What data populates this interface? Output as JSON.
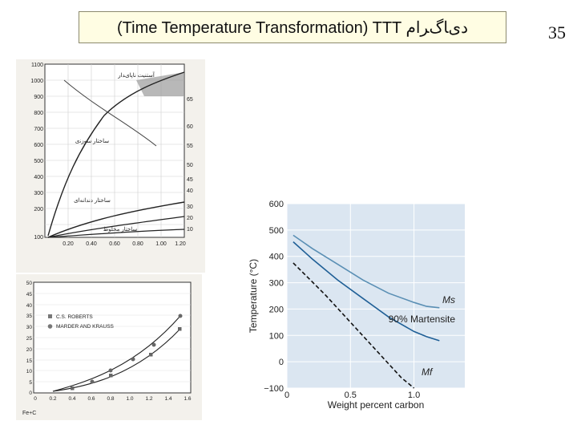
{
  "slide": {
    "title": "(Time Temperature Transformation) TTT دیﺎگﺮﺍﻡ",
    "page_number": "35"
  },
  "top_left_scan": {
    "y_ticks_left": [
      "1100",
      "1000",
      "900",
      "800",
      "700",
      "600",
      "500",
      "400",
      "300",
      "200",
      "100"
    ],
    "y_ticks_right": [
      "65",
      "60",
      "55",
      "50",
      "45",
      "40",
      "30",
      "20",
      "10"
    ],
    "x_ticks": [
      "0.20",
      "0.40",
      "0.60",
      "0.80",
      "1.00",
      "1.20"
    ],
    "labels": [
      "آﺳﺘﻨﯿﺖ ﻧﺎﭘﺎیﺪﺍﺭ",
      "ﺳﺎﺧﺘﺎﺭ ﺩﻧﺪﺍﻧﻪ‌ﺍی",
      "ﺳﺎﺧﺘﺎﺭ ﺳﻮﺯﻧی",
      "ﺳﺎﺧﺘﺎﺭ ﻣﺨﻠﻮﻁ"
    ]
  },
  "bottom_left_scan": {
    "y_ticks": [
      "50",
      "45",
      "40",
      "35",
      "30",
      "25",
      "20",
      "15",
      "10",
      "5",
      "0"
    ],
    "x_ticks": [
      "0",
      "0.2",
      "0.4",
      "0.6",
      "0.8",
      "1.0",
      "1.2",
      "1.4",
      "1.6"
    ],
    "legend": [
      {
        "name": "C.S. ROBERTS",
        "marker": "square"
      },
      {
        "name": "MARDER AND KRAUSS",
        "marker": "circle"
      }
    ],
    "caption": "Fe+C"
  },
  "chart_data": {
    "type": "line",
    "xlabel": "Weight percent carbon",
    "ylabel": "Temperature (°C)",
    "xlim": [
      0,
      1.4
    ],
    "ylim": [
      -100,
      600
    ],
    "x_ticks": [
      "0",
      "0.5",
      "1.0"
    ],
    "y_ticks": [
      "600",
      "500",
      "400",
      "300",
      "200",
      "100",
      "0",
      "−100"
    ],
    "series": [
      {
        "name": "Ms",
        "color": "#5a8fb4",
        "style": "solid",
        "x": [
          0.05,
          0.2,
          0.4,
          0.6,
          0.8,
          1.0,
          1.1,
          1.2
        ],
        "y": [
          480,
          430,
          370,
          310,
          260,
          225,
          210,
          205
        ]
      },
      {
        "name": "90% Martensite",
        "color": "#1f5f96",
        "style": "solid",
        "x": [
          0.05,
          0.2,
          0.4,
          0.6,
          0.8,
          1.0,
          1.1,
          1.2
        ],
        "y": [
          455,
          390,
          310,
          240,
          170,
          115,
          95,
          80
        ]
      },
      {
        "name": "Mf",
        "color": "#111111",
        "style": "dashed",
        "x": [
          0.05,
          0.3,
          0.5,
          0.7,
          0.9,
          1.0
        ],
        "y": [
          375,
          255,
          150,
          45,
          -60,
          -100
        ]
      }
    ]
  }
}
